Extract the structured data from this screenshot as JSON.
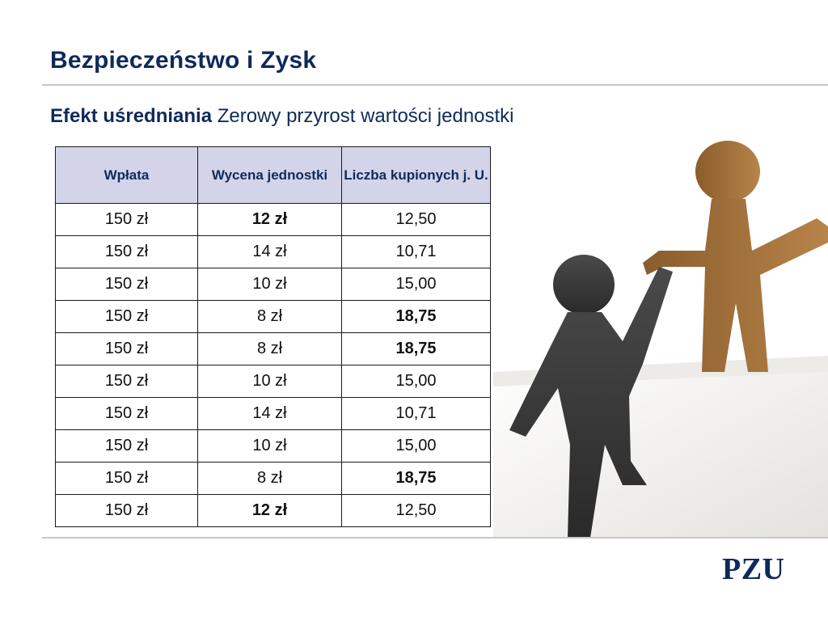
{
  "slide": {
    "title": "Bezpieczeństwo i Zysk",
    "subtitle_bold": "Efekt uśredniania",
    "subtitle_rest": "Zerowy przyrost wartości jednostki",
    "logo": "PZU"
  },
  "table": {
    "headers": [
      "Wpłata",
      "Wycena jednostki",
      "Liczba kupionych j. U."
    ],
    "rows": [
      [
        "150 zł",
        "12 zł",
        "12,50"
      ],
      [
        "150 zł",
        "14 zł",
        "10,71"
      ],
      [
        "150 zł",
        "10 zł",
        "15,00"
      ],
      [
        "150 zł",
        "8 zł",
        "18,75"
      ],
      [
        "150 zł",
        "8 zł",
        "18,75"
      ],
      [
        "150 zł",
        "10 zł",
        "15,00"
      ],
      [
        "150 zł",
        "14 zł",
        "10,71"
      ],
      [
        "150 zł",
        "10 zł",
        "15,00"
      ],
      [
        "150 zł",
        "8 zł",
        "18,75"
      ],
      [
        "150 zł",
        "12 zł",
        "12,50"
      ]
    ],
    "bold_cells": [
      [
        0,
        1
      ],
      [
        3,
        2
      ],
      [
        4,
        2
      ],
      [
        8,
        2
      ],
      [
        9,
        1
      ]
    ]
  },
  "colors": {
    "title": "#0f2a5a",
    "header_bg": "#d3d4ea",
    "figure_gray": "#3a3a3a",
    "figure_brown": "#9a6a35"
  },
  "illustration": {
    "icons": [
      "paper-figure-gray-icon",
      "paper-figure-brown-icon"
    ]
  }
}
